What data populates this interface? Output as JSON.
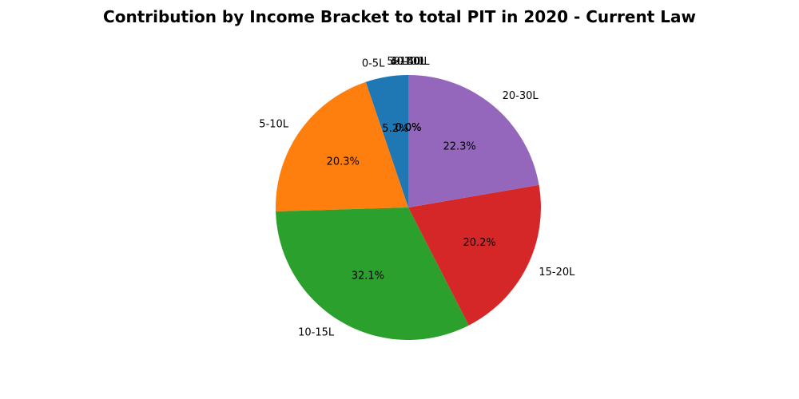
{
  "chart_data": {
    "type": "pie",
    "title": "Contribution by Income Bracket to total PIT in 2020 - Current Law",
    "labels": [
      "0-5L",
      "5-10L",
      "10-15L",
      "15-20L",
      "20-30L",
      "30-40L",
      "40-50L",
      "50-100L",
      ">100L"
    ],
    "values": [
      5.2,
      20.3,
      32.1,
      20.2,
      22.3,
      0.0,
      0.0,
      0.0,
      0.0
    ],
    "pct_labels": [
      "5.2%",
      "20.3%",
      "32.1%",
      "20.2%",
      "22.3%",
      "0.0%",
      "0.0%",
      "0.0%",
      "0.0%"
    ],
    "colors": [
      "#1f77b4",
      "#ff7f0e",
      "#2ca02c",
      "#d62728",
      "#9467bd",
      "#8c564b",
      "#e377c2",
      "#7f7f7f",
      "#bcbd22"
    ],
    "start_angle_deg": 90,
    "direction": "counterclockwise",
    "legend": "none"
  }
}
